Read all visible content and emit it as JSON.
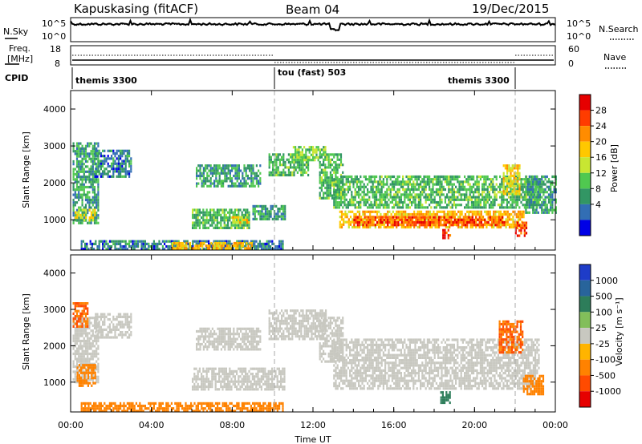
{
  "header": {
    "station": "Kapuskasing (fitACF)",
    "beam": "Beam 04",
    "date": "19/Dec/2015"
  },
  "noise_panel": {
    "left_label": "N.Sky",
    "right_label": "N.Search",
    "left_ticks": [
      "10^5",
      "10^0"
    ],
    "right_ticks": [
      "10^5",
      "10^0"
    ]
  },
  "freq_panel": {
    "left_label_line1": "Freq.",
    "left_label_line2": "[MHz]",
    "right_label": "Nave",
    "left_ticks": [
      "18",
      "8"
    ],
    "right_ticks": [
      "60",
      "0"
    ]
  },
  "cpid": {
    "label": "CPID",
    "segments": [
      {
        "name": "themis 3300",
        "start_h": 0.0,
        "end_h": 10.0
      },
      {
        "name": "tou (fast) 503",
        "start_h": 10.0,
        "end_h": 22.0
      },
      {
        "name": "themis 3300",
        "start_h": 22.0,
        "end_h": 24.0
      }
    ]
  },
  "axes": {
    "ylabel": "Slant Range [km]",
    "xlabel": "Time UT",
    "x_ticks": [
      "00:00",
      "04:00",
      "08:00",
      "12:00",
      "16:00",
      "20:00",
      "00:00"
    ],
    "y_ticks": [
      "1000",
      "2000",
      "3000",
      "4000"
    ]
  },
  "power_scale": {
    "label": "Power [dB]",
    "ticks": [
      "28",
      "24",
      "20",
      "16",
      "12",
      "8",
      "4"
    ],
    "colors": [
      "#e60000",
      "#ff3c00",
      "#ff8c00",
      "#ffc800",
      "#c8e632",
      "#50c850",
      "#329664",
      "#326eb4",
      "#0000e6"
    ]
  },
  "velocity_scale": {
    "label": "Velocity [m s⁻¹]",
    "ticks": [
      "1000",
      "500",
      "100",
      "25",
      "-25",
      "-100",
      "-500",
      "-1000"
    ],
    "colors": [
      "#1e3cc8",
      "#28649b",
      "#2d7d5a",
      "#82be5a",
      "#c8c8c0",
      "#ffb400",
      "#ff8200",
      "#ff4b00",
      "#e60000"
    ]
  },
  "chart_data": {
    "type": "heatmap",
    "x_range_hours": [
      0,
      24
    ],
    "y_range_km": [
      180,
      4500
    ],
    "grid": false,
    "power_regions": [
      {
        "t0": 0.1,
        "t1": 1.4,
        "r0": 900,
        "r1": 3100,
        "dB": 10
      },
      {
        "t0": 1.2,
        "t1": 3.0,
        "r0": 2200,
        "r1": 2900,
        "dB": 8
      },
      {
        "t0": 0.2,
        "t1": 1.2,
        "r0": 1000,
        "r1": 1300,
        "dB": 18
      },
      {
        "t0": 6.2,
        "t1": 9.4,
        "r0": 1900,
        "r1": 2500,
        "dB": 10
      },
      {
        "t0": 6.0,
        "t1": 8.8,
        "r0": 800,
        "r1": 1300,
        "dB": 12
      },
      {
        "t0": 8.0,
        "t1": 8.8,
        "r0": 950,
        "r1": 1100,
        "dB": 20
      },
      {
        "t0": 9.0,
        "t1": 10.6,
        "r0": 1000,
        "r1": 1400,
        "dB": 10
      },
      {
        "t0": 9.8,
        "t1": 11.8,
        "r0": 2200,
        "r1": 2800,
        "dB": 12
      },
      {
        "t0": 11.0,
        "t1": 12.6,
        "r0": 2600,
        "r1": 3000,
        "dB": 14
      },
      {
        "t0": 12.3,
        "t1": 13.5,
        "r0": 1600,
        "r1": 2800,
        "dB": 12
      },
      {
        "t0": 13.0,
        "t1": 23.2,
        "r0": 1300,
        "r1": 2200,
        "dB": 12
      },
      {
        "t0": 13.3,
        "t1": 22.4,
        "r0": 800,
        "r1": 1250,
        "dB": 22
      },
      {
        "t0": 14.0,
        "t1": 21.5,
        "r0": 850,
        "r1": 1100,
        "dB": 28
      },
      {
        "t0": 18.4,
        "t1": 18.8,
        "r0": 500,
        "r1": 750,
        "dB": 30
      },
      {
        "t0": 21.4,
        "t1": 22.2,
        "r0": 1700,
        "r1": 2500,
        "dB": 20
      },
      {
        "t0": 22.0,
        "t1": 22.6,
        "r0": 600,
        "r1": 950,
        "dB": 28
      },
      {
        "t0": 22.5,
        "t1": 24.0,
        "r0": 1200,
        "r1": 2200,
        "dB": 10
      },
      {
        "t0": 0.5,
        "t1": 10.5,
        "r0": 200,
        "r1": 450,
        "dB": 8
      },
      {
        "t0": 5.0,
        "t1": 9.0,
        "r0": 250,
        "r1": 400,
        "dB": 22
      }
    ],
    "velocity_regions": [
      {
        "t0": 0.1,
        "t1": 1.4,
        "r0": 1000,
        "r1": 2800,
        "v": 0
      },
      {
        "t0": 0.1,
        "t1": 0.8,
        "r0": 2500,
        "r1": 3200,
        "v": -300
      },
      {
        "t0": 0.3,
        "t1": 1.2,
        "r0": 900,
        "r1": 1500,
        "v": -150
      },
      {
        "t0": 1.2,
        "t1": 3.0,
        "r0": 2200,
        "r1": 2900,
        "v": 0
      },
      {
        "t0": 6.2,
        "t1": 9.4,
        "r0": 1900,
        "r1": 2500,
        "v": 0
      },
      {
        "t0": 6.0,
        "t1": 10.6,
        "r0": 800,
        "r1": 1400,
        "v": 0
      },
      {
        "t0": 9.8,
        "t1": 12.6,
        "r0": 2200,
        "r1": 3000,
        "v": 0
      },
      {
        "t0": 12.3,
        "t1": 13.5,
        "r0": 1600,
        "r1": 2800,
        "v": 0
      },
      {
        "t0": 13.0,
        "t1": 23.2,
        "r0": 800,
        "r1": 2200,
        "v": 0
      },
      {
        "t0": 21.2,
        "t1": 22.4,
        "r0": 1800,
        "r1": 2700,
        "v": -300
      },
      {
        "t0": 22.4,
        "t1": 23.4,
        "r0": 700,
        "r1": 1200,
        "v": -250
      },
      {
        "t0": 0.5,
        "t1": 10.5,
        "r0": 200,
        "r1": 450,
        "v": -100
      },
      {
        "t0": 18.3,
        "t1": 18.8,
        "r0": 450,
        "r1": 750,
        "v": 80
      }
    ]
  }
}
